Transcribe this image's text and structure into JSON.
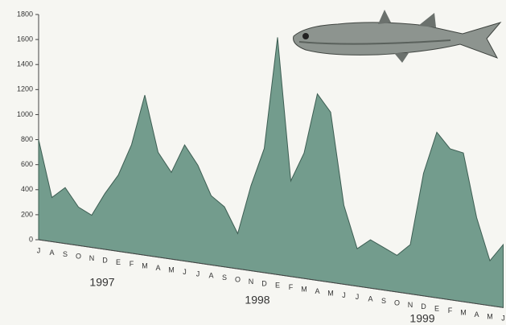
{
  "chart_data": {
    "type": "area",
    "categories": [
      "J",
      "A",
      "S",
      "O",
      "N",
      "D",
      "E",
      "F",
      "M",
      "A",
      "M",
      "J",
      "J",
      "A",
      "S",
      "O",
      "N",
      "D",
      "E",
      "F",
      "M",
      "A",
      "M",
      "J",
      "J",
      "A",
      "S",
      "O",
      "N",
      "D",
      "E",
      "F",
      "M",
      "A",
      "M",
      "J"
    ],
    "values": [
      800,
      350,
      440,
      300,
      250,
      430,
      580,
      820,
      1200,
      780,
      640,
      850,
      710,
      500,
      430,
      250,
      600,
      870,
      1650,
      660,
      860,
      1270,
      1150,
      530,
      250,
      320,
      280,
      240,
      320,
      790,
      1060,
      960,
      940,
      540,
      280,
      390
    ],
    "color": "#739c8d",
    "ylim": [
      0,
      1800
    ],
    "yticks": [
      0,
      200,
      400,
      600,
      800,
      1000,
      1200,
      1400,
      1600,
      1800
    ],
    "annotations": [
      "1997",
      "1998",
      "1999"
    ]
  }
}
